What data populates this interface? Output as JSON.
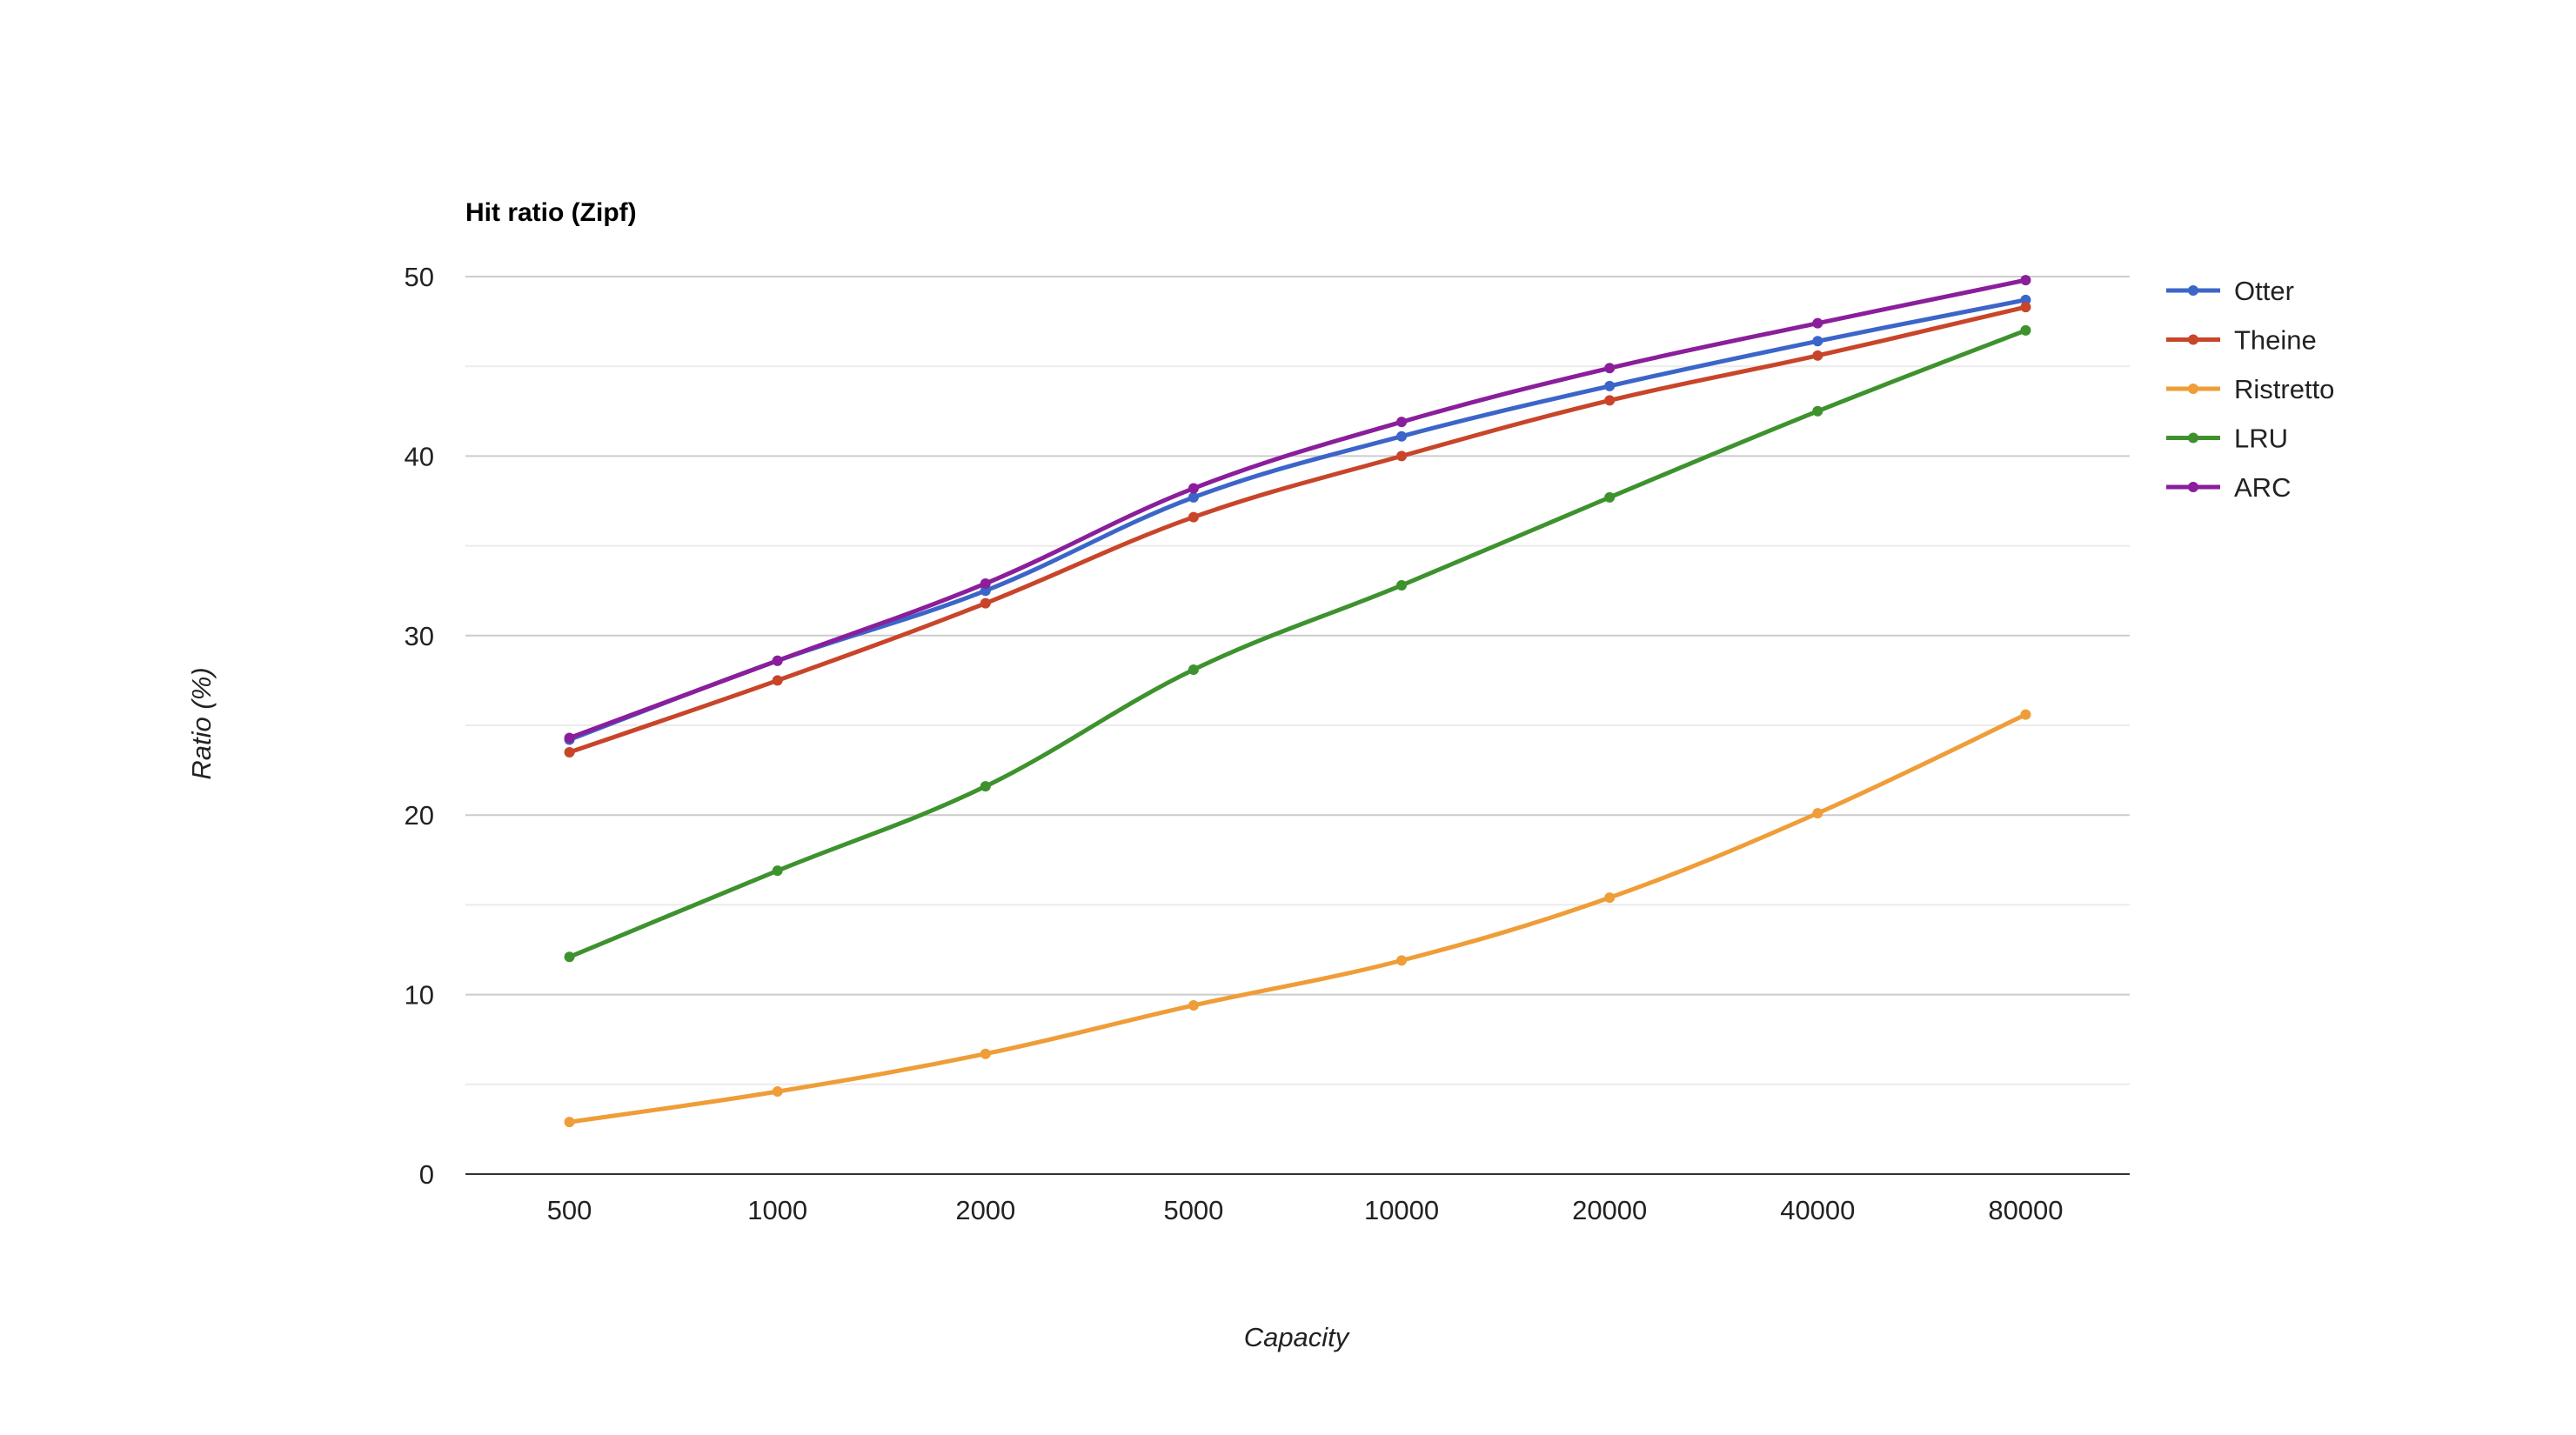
{
  "chart_data": {
    "type": "line",
    "title": "Hit ratio (Zipf)",
    "xlabel": "Capacity",
    "ylabel": "Ratio (%)",
    "categories": [
      "500",
      "1000",
      "2000",
      "5000",
      "10000",
      "20000",
      "40000",
      "80000"
    ],
    "ylim": [
      0,
      50
    ],
    "yticks": [
      0,
      10,
      20,
      30,
      40,
      50
    ],
    "grid": true,
    "legend_position": "right",
    "series": [
      {
        "name": "Otter",
        "color": "#3c65c9",
        "values": [
          24.2,
          28.6,
          32.5,
          37.7,
          41.1,
          43.9,
          46.4,
          48.7
        ]
      },
      {
        "name": "Theine",
        "color": "#c8452a",
        "values": [
          23.5,
          27.5,
          31.8,
          36.6,
          40.0,
          43.1,
          45.6,
          48.3
        ]
      },
      {
        "name": "Ristretto",
        "color": "#ef9d38",
        "values": [
          2.9,
          4.6,
          6.7,
          9.4,
          11.9,
          15.4,
          20.1,
          25.6
        ]
      },
      {
        "name": "LRU",
        "color": "#3e922e",
        "values": [
          12.1,
          16.9,
          21.6,
          28.1,
          32.8,
          37.7,
          42.5,
          47.0
        ]
      },
      {
        "name": "ARC",
        "color": "#8a1e9b",
        "values": [
          24.3,
          28.6,
          32.9,
          38.2,
          41.9,
          44.9,
          47.4,
          49.8
        ]
      }
    ]
  }
}
